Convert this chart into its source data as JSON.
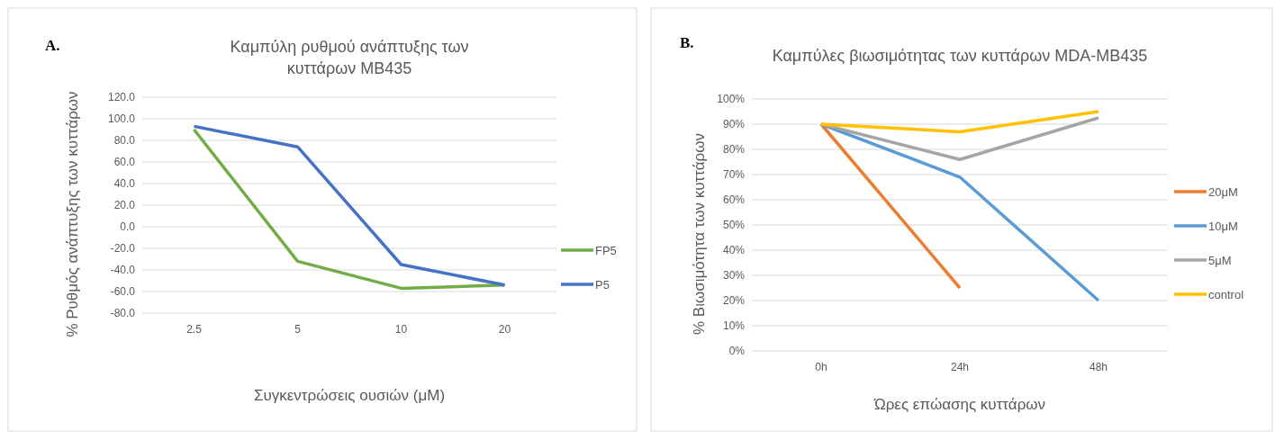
{
  "chart_data": [
    {
      "type": "line",
      "title": "Καμπύλη ρυθμού ανάπτυξης των κυττάρων MB435",
      "xlabel": "Συγκεντρώσεις ουσιών (μM)",
      "ylabel": "% Ρυθμός ανάπτυξης των κυττάρων",
      "annotations": [
        "A."
      ],
      "categories": [
        "2.5",
        "5",
        "10",
        "20"
      ],
      "series": [
        {
          "name": "FP5",
          "color": "#70ad47",
          "values": [
            90,
            -32,
            -57,
            -54
          ]
        },
        {
          "name": "P5",
          "color": "#4472c4",
          "values": [
            93,
            74,
            -35,
            -54
          ]
        }
      ],
      "ylim": [
        -80,
        120
      ],
      "yticks": [
        {
          "value": -80,
          "label": "-80.0"
        },
        {
          "value": -60,
          "label": "-60.0"
        },
        {
          "value": -40,
          "label": "-40.0"
        },
        {
          "value": -20,
          "label": "-20.0"
        },
        {
          "value": 0,
          "label": "0.0"
        },
        {
          "value": 20,
          "label": "20.0"
        },
        {
          "value": 40,
          "label": "40.0"
        },
        {
          "value": 60,
          "label": "60.0"
        },
        {
          "value": 80,
          "label": "80.0"
        },
        {
          "value": 100,
          "label": "100.0"
        },
        {
          "value": 120,
          "label": "120.0"
        }
      ],
      "grid": "y",
      "legend": "right"
    },
    {
      "type": "line",
      "title": "Καμπύλες βιωσιμότητας των κυττάρων MDA-MB435",
      "xlabel": "Ώρες επώασης κυττάρων",
      "ylabel": "% Βιωσιμότητα των κυττάρων",
      "annotations": [
        "B."
      ],
      "categories": [
        "0h",
        "24h",
        "48h"
      ],
      "series": [
        {
          "name": "20μM",
          "color": "#ed7d31",
          "values": [
            90,
            25,
            null
          ]
        },
        {
          "name": "10μM",
          "color": "#5b9bd5",
          "values": [
            90,
            69,
            20
          ]
        },
        {
          "name": "5μM",
          "color": "#a5a5a5",
          "values": [
            90,
            76,
            92.5
          ]
        },
        {
          "name": "control",
          "color": "#ffc000",
          "values": [
            90,
            87,
            95
          ]
        }
      ],
      "ylim": [
        0,
        100
      ],
      "yticks": [
        {
          "value": 0,
          "label": "0%"
        },
        {
          "value": 10,
          "label": "10%"
        },
        {
          "value": 20,
          "label": "20%"
        },
        {
          "value": 30,
          "label": "30%"
        },
        {
          "value": 40,
          "label": "40%"
        },
        {
          "value": 50,
          "label": "50%"
        },
        {
          "value": 60,
          "label": "60%"
        },
        {
          "value": 70,
          "label": "70%"
        },
        {
          "value": 80,
          "label": "80%"
        },
        {
          "value": 90,
          "label": "90%"
        },
        {
          "value": 100,
          "label": "100%"
        }
      ],
      "grid": "y",
      "legend": "right"
    }
  ]
}
